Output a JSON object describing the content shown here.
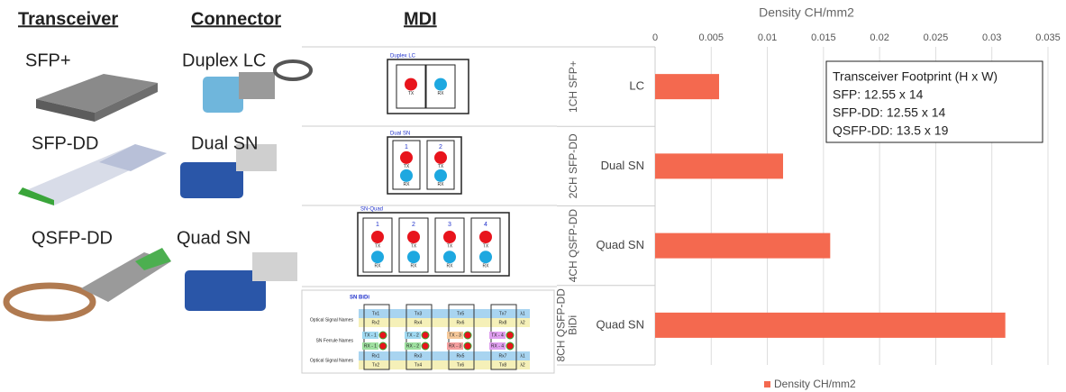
{
  "headers": [
    "Transceiver",
    "Connector",
    "MDI"
  ],
  "rows": [
    {
      "transceiver": "SFP+",
      "connector": "Duplex LC"
    },
    {
      "transceiver": "SFP-DD",
      "connector": "Dual SN"
    },
    {
      "transceiver": "QSFP-DD",
      "connector": "Quad SN"
    }
  ],
  "mdi": [
    {
      "title": "Duplex LC",
      "ports": [
        {
          "tx": "TX"
        },
        {
          "rx": "RX"
        }
      ]
    },
    {
      "title": "Dual SN",
      "ports": [
        {
          "number": "1",
          "tx": "TX",
          "rx": "RX"
        },
        {
          "number": "2",
          "tx": "TX",
          "rx": "RX"
        }
      ]
    },
    {
      "title": "SN-Quad",
      "ports": [
        {
          "number": "1",
          "tx": "TX",
          "rx": "RX"
        },
        {
          "number": "2",
          "tx": "TX",
          "rx": "RX"
        },
        {
          "number": "3",
          "tx": "TX",
          "rx": "RX"
        },
        {
          "number": "4",
          "tx": "TX",
          "rx": "RX"
        }
      ]
    }
  ],
  "bidi": {
    "title": "SN BiDi",
    "row_labels": [
      "Optical Signal Names",
      "SN Ferrule Names",
      "Optical Signal Names"
    ],
    "columns": [
      {
        "top": [
          "Tx1",
          "Rx2"
        ],
        "ferrule": [
          "TX - 1",
          "RX - 1"
        ],
        "bottom": [
          "Rx1",
          "Tx2"
        ]
      },
      {
        "top": [
          "Tx3",
          "Rx4"
        ],
        "ferrule": [
          "TX - 2",
          "RX - 2"
        ],
        "bottom": [
          "Rx3",
          "Tx4"
        ]
      },
      {
        "top": [
          "Tx5",
          "Rx6"
        ],
        "ferrule": [
          "TX - 3",
          "RX - 3"
        ],
        "bottom": [
          "Rx5",
          "Tx6"
        ]
      },
      {
        "top": [
          "Tx7",
          "Rx8"
        ],
        "ferrule": [
          "TX - 4",
          "RX - 4"
        ],
        "bottom": [
          "Rx7",
          "Tx8"
        ]
      }
    ],
    "wavelengths": [
      "λ1",
      "λ2"
    ]
  },
  "chart_data": {
    "type": "bar",
    "orientation": "horizontal",
    "x_label": "Density CH/mm2",
    "groups": [
      [
        "1CH SFP+"
      ],
      [
        "2CH SFP-DD"
      ],
      [
        "4CH QSFP-DD"
      ],
      [
        "8CH QSFP-DD",
        "BiDi"
      ]
    ],
    "categories": [
      "LC",
      "Dual SN",
      "Quad SN",
      "Quad SN"
    ],
    "series": [
      {
        "name": "Density CH/mm2",
        "color": "#f4694f",
        "values": [
          0.0057,
          0.0114,
          0.0156,
          0.0312
        ]
      }
    ],
    "xlim": [
      0,
      0.035
    ],
    "xticks": [
      0,
      0.005,
      0.01,
      0.015,
      0.02,
      0.025,
      0.03,
      0.035
    ],
    "grid": true,
    "legend": "bottom",
    "annotation": [
      "Transceiver Footprint (H x W)",
      "SFP: 12.55 x 14",
      "SFP-DD: 12.55 x 14",
      "QSFP-DD: 13.5 x 19"
    ]
  }
}
